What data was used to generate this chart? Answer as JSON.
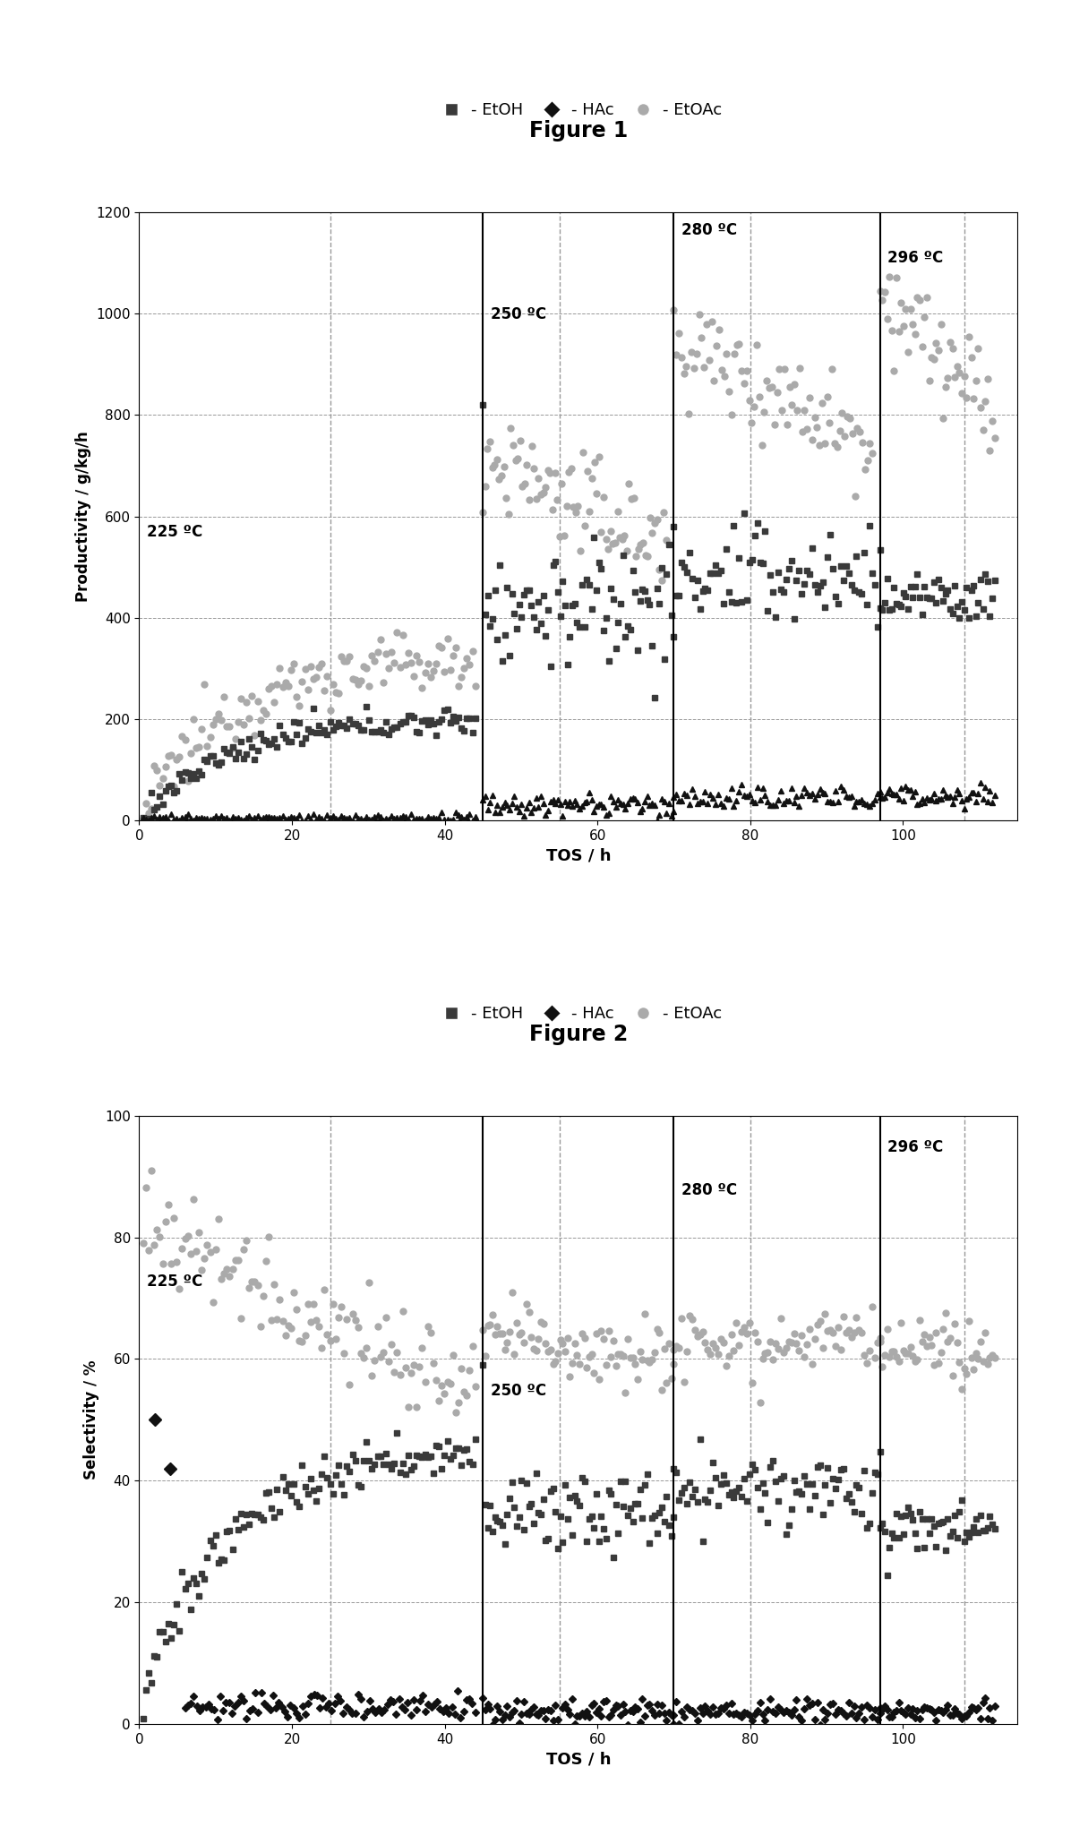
{
  "fig1_title": "Figure 1",
  "fig2_title": "Figure 2",
  "fig1_ylabel": "Productivity / g/kg/h",
  "fig2_ylabel": "Selectivity / %",
  "xlabel": "TOS / h",
  "legend_labels": [
    "- EtOH",
    "- HAc",
    "- EtOAc"
  ],
  "temp_labels": [
    "225 ºC",
    "250 ºC",
    "280 ºC",
    "296 ºC"
  ],
  "vlines_solid": [
    45,
    70,
    97
  ],
  "vlines_dashed": [
    25,
    55,
    80,
    108
  ],
  "fig1_ylim": [
    0,
    1200
  ],
  "fig2_ylim": [
    0,
    100
  ],
  "fig1_yticks": [
    0,
    200,
    400,
    600,
    800,
    1000,
    1200
  ],
  "fig2_yticks": [
    0,
    20,
    40,
    60,
    80,
    100
  ],
  "xticks": [
    0,
    20,
    40,
    60,
    80,
    100
  ],
  "xlim": [
    0,
    115
  ],
  "bg_color": "#ffffff",
  "etoh_color": "#3a3a3a",
  "hac_color": "#111111",
  "etoac_color": "#aaaaaa",
  "grid_color": "#999999",
  "vline_color": "#000000"
}
